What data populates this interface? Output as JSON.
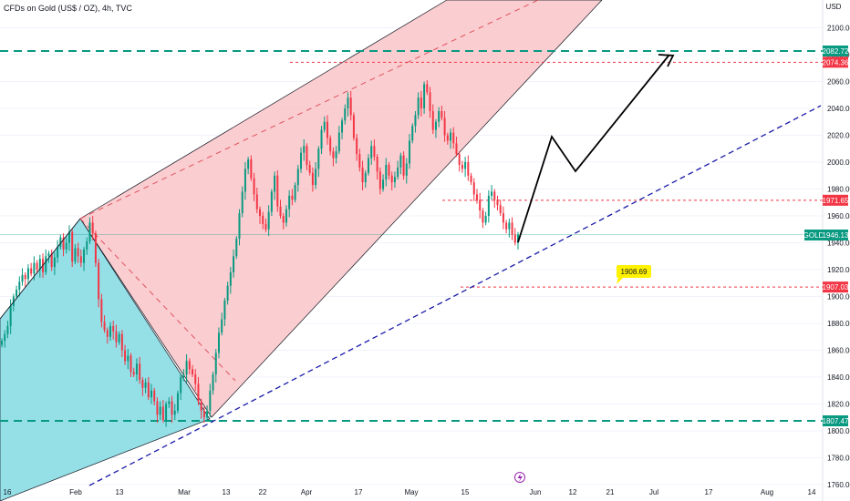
{
  "header": {
    "title": "CFDs on Gold (US$ / OZ), 4h, TVC"
  },
  "price_axis": {
    "currency": "USD"
  },
  "chart_data": {
    "type": "candlestick",
    "title": "CFDs on Gold (US$ / OZ), 4h, TVC",
    "symbol": "GOLD",
    "last_price": "1946.13",
    "ylim": [
      1755,
      2110
    ],
    "y_ticks": [
      "1760.00",
      "1780.00",
      "1800.00",
      "1820.00",
      "1840.00",
      "1860.00",
      "1880.00",
      "1900.00",
      "1920.00",
      "1940.00",
      "1960.00",
      "1980.00",
      "2000.00",
      "2020.00",
      "2040.00",
      "2060.00",
      "2080.00",
      "2100.00"
    ],
    "x_ticks": [
      "16",
      "Feb",
      "13",
      "Mar",
      "13",
      "22",
      "Apr",
      "17",
      "May",
      "15",
      "Jun",
      "12",
      "21",
      "Jul",
      "17",
      "Aug",
      "14"
    ],
    "price_levels": [
      {
        "label": "2082.72",
        "value": 2082.72,
        "color": "#089981",
        "style": "long-dash"
      },
      {
        "label": "2074.36",
        "value": 2074.36,
        "color": "#f23645",
        "style": "short-dash"
      },
      {
        "label": "1971.65",
        "value": 1971.65,
        "color": "#f23645",
        "style": "short-dash"
      },
      {
        "label": "1907.03",
        "value": 1907.03,
        "color": "#f23645",
        "style": "short-dash"
      },
      {
        "label": "1807.47",
        "value": 1807.47,
        "color": "#089981",
        "style": "long-dash"
      }
    ],
    "callout": {
      "label": "1908.69",
      "value": 1908.69,
      "color": "#fff200"
    },
    "colors": {
      "up": "#089981",
      "down": "#f23645",
      "wedge_red": "#f9c4c8",
      "wedge_cyan": "#8fdde6",
      "trendline": "#1a1aa8"
    },
    "series": [
      {
        "name": "GOLD",
        "closes": [
          1867,
          1872,
          1878,
          1893,
          1900,
          1905,
          1911,
          1916,
          1913,
          1921,
          1917,
          1925,
          1920,
          1928,
          1918,
          1930,
          1932,
          1922,
          1929,
          1937,
          1944,
          1935,
          1940,
          1948,
          1926,
          1936,
          1930,
          1925,
          1935,
          1941,
          1955,
          1947,
          1925,
          1898,
          1881,
          1875,
          1870,
          1878,
          1874,
          1866,
          1872,
          1860,
          1852,
          1856,
          1844,
          1842,
          1850,
          1838,
          1832,
          1836,
          1825,
          1830,
          1822,
          1812,
          1818,
          1808,
          1820,
          1822,
          1812,
          1815,
          1828,
          1840,
          1842,
          1852,
          1846,
          1842,
          1835,
          1822,
          1815,
          1810,
          1815,
          1830,
          1842,
          1858,
          1873,
          1883,
          1897,
          1908,
          1918,
          1930,
          1943,
          1962,
          1978,
          1995,
          2002,
          1988,
          1976,
          1965,
          1960,
          1954,
          1950,
          1963,
          1978,
          1990,
          1967,
          1960,
          1955,
          1965,
          1975,
          1972,
          1983,
          1995,
          2007,
          2012,
          1998,
          1992,
          1983,
          1995,
          2010,
          2024,
          2030,
          2018,
          2008,
          2003,
          2008,
          2022,
          2031,
          2040,
          2048,
          2035,
          2018,
          2006,
          1996,
          1985,
          1992,
          2003,
          2012,
          2004,
          1993,
          1980,
          1987,
          1998,
          1990,
          1985,
          1989,
          1996,
          2005,
          1990,
          1999,
          2016,
          2027,
          2035,
          2048,
          2040,
          2058,
          2052,
          2038,
          2024,
          2030,
          2038,
          2033,
          2020,
          2016,
          2022,
          2014,
          2006,
          1998,
          1995,
          2000,
          1990,
          1985,
          1976,
          1972,
          1964,
          1955,
          1960,
          1975,
          1978,
          1972,
          1968,
          1962,
          1955,
          1950,
          1955,
          1946,
          1940,
          1946
        ]
      }
    ]
  }
}
